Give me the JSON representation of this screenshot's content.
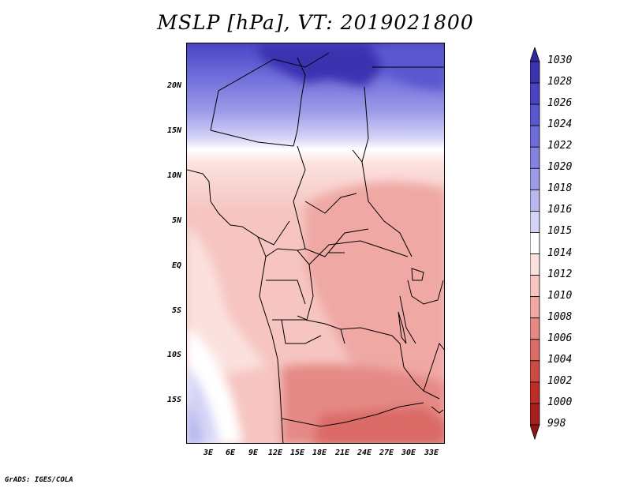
{
  "title": "MSLP [hPa], VT: 2019021800",
  "footer": "GrADS: IGES/COLA",
  "map": {
    "lat_labels": [
      "20N",
      "15N",
      "10N",
      "5N",
      "EQ",
      "5S",
      "10S",
      "15S"
    ],
    "lon_labels": [
      "3E",
      "6E",
      "9E",
      "12E",
      "15E",
      "18E",
      "21E",
      "24E",
      "27E",
      "30E",
      "33E"
    ],
    "field": "MSLP",
    "units": "hPa"
  },
  "colorbar": {
    "levels": [
      "1030",
      "1028",
      "1026",
      "1024",
      "1022",
      "1020",
      "1018",
      "1016",
      "1015",
      "1014",
      "1012",
      "1010",
      "1008",
      "1006",
      "1004",
      "1002",
      "1000",
      "998"
    ],
    "colors": [
      "#2e2a9c",
      "#3a33b0",
      "#4a44c4",
      "#5a57d0",
      "#6e6cd9",
      "#8481e0",
      "#9d9be8",
      "#b8b7ef",
      "#d4d3f6",
      "#ffffff",
      "#fbe1de",
      "#f6c5c1",
      "#efa8a4",
      "#e58985",
      "#da6b66",
      "#cd4a45",
      "#bc2c28",
      "#a8201d",
      "#8e1614"
    ]
  }
}
